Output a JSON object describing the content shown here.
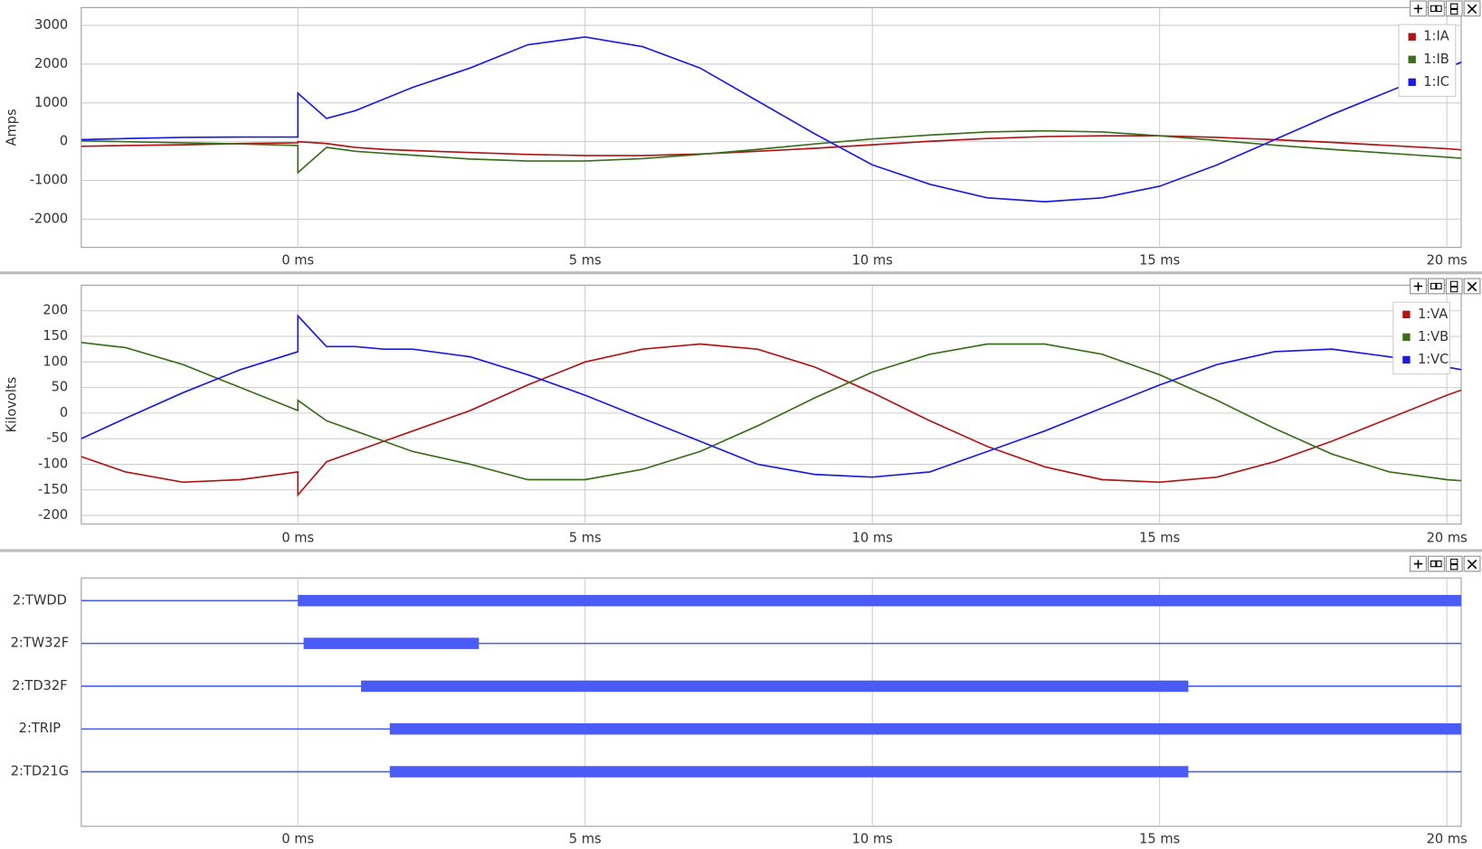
{
  "chart_data": [
    {
      "type": "line",
      "ylabel": "Amps",
      "x": [
        -3.77,
        -3,
        -2,
        -1,
        0,
        0,
        0.5,
        1,
        1.5,
        2,
        3,
        4,
        5,
        6,
        7,
        8,
        9,
        10,
        11,
        12,
        13,
        14,
        15,
        16,
        17,
        18,
        19,
        20,
        20.25
      ],
      "xlim": [
        -3.77,
        20.25
      ],
      "xticks": [
        {
          "value": 0,
          "label": "0 ms"
        },
        {
          "value": 5,
          "label": "5 ms"
        },
        {
          "value": 10,
          "label": "10 ms"
        },
        {
          "value": 15,
          "label": "15 ms"
        },
        {
          "value": 20,
          "label": "20 ms"
        }
      ],
      "ylim": [
        -2730,
        3460
      ],
      "yticks": [
        -2000,
        -1000,
        0,
        1000,
        2000,
        3000
      ],
      "grid": true,
      "legend": "top-right",
      "series": [
        {
          "name": "1:IA",
          "color": "#b01414",
          "values": [
            -120,
            -100,
            -80,
            -50,
            -30,
            0,
            -50,
            -150,
            -200,
            -230,
            -280,
            -330,
            -360,
            -360,
            -320,
            -250,
            -170,
            -80,
            10,
            80,
            130,
            150,
            150,
            110,
            50,
            -20,
            -100,
            -180,
            -210
          ]
        },
        {
          "name": "1:IB",
          "color": "#3a6e1a",
          "values": [
            20,
            0,
            -30,
            -60,
            -100,
            -800,
            -150,
            -250,
            -300,
            -350,
            -450,
            -500,
            -500,
            -440,
            -330,
            -200,
            -60,
            70,
            170,
            250,
            280,
            250,
            150,
            30,
            -90,
            -200,
            -300,
            -400,
            -430
          ]
        },
        {
          "name": "1:IC",
          "color": "#1a1ae6",
          "values": [
            50,
            80,
            110,
            120,
            120,
            1250,
            600,
            800,
            1100,
            1400,
            1900,
            2500,
            2700,
            2450,
            1900,
            1050,
            200,
            -600,
            -1100,
            -1450,
            -1550,
            -1450,
            -1150,
            -600,
            50,
            700,
            1300,
            1900,
            2050
          ]
        }
      ]
    },
    {
      "type": "line",
      "ylabel": "Kilovolts",
      "x": [
        -3.77,
        -3,
        -2,
        -1,
        0,
        0,
        0.5,
        1,
        1.5,
        2,
        3,
        4,
        5,
        6,
        7,
        8,
        9,
        10,
        11,
        12,
        13,
        14,
        15,
        16,
        17,
        18,
        19,
        20,
        20.25
      ],
      "xlim": [
        -3.77,
        20.25
      ],
      "xticks": [
        {
          "value": 0,
          "label": "0 ms"
        },
        {
          "value": 5,
          "label": "5 ms"
        },
        {
          "value": 10,
          "label": "10 ms"
        },
        {
          "value": 15,
          "label": "15 ms"
        },
        {
          "value": 20,
          "label": "20 ms"
        }
      ],
      "ylim": [
        -217,
        250
      ],
      "yticks": [
        -200,
        -150,
        -100,
        -50,
        0,
        50,
        100,
        150,
        200
      ],
      "grid": true,
      "legend": "top-right",
      "series": [
        {
          "name": "1:VA",
          "color": "#b01414",
          "values": [
            -85,
            -115,
            -135,
            -130,
            -115,
            -160,
            -95,
            -75,
            -55,
            -35,
            5,
            55,
            100,
            125,
            135,
            125,
            90,
            40,
            -15,
            -65,
            -105,
            -130,
            -135,
            -125,
            -95,
            -55,
            -10,
            35,
            45
          ]
        },
        {
          "name": "1:VB",
          "color": "#3a6e1a",
          "values": [
            138,
            128,
            95,
            50,
            5,
            25,
            -15,
            -35,
            -55,
            -75,
            -100,
            -130,
            -130,
            -110,
            -75,
            -25,
            30,
            80,
            115,
            135,
            135,
            115,
            75,
            25,
            -30,
            -80,
            -115,
            -130,
            -132
          ]
        },
        {
          "name": "1:VC",
          "color": "#1a1ae6",
          "values": [
            -50,
            -10,
            40,
            85,
            120,
            190,
            130,
            130,
            125,
            125,
            110,
            75,
            35,
            -10,
            -55,
            -100,
            -120,
            -125,
            -115,
            -75,
            -35,
            10,
            55,
            95,
            120,
            125,
            110,
            90,
            85
          ]
        }
      ]
    },
    {
      "type": "timeline",
      "color": "#4a5cf5",
      "grid": true,
      "xlim": [
        -3.77,
        20.25
      ],
      "xticks": [
        {
          "value": 0,
          "label": "0 ms"
        },
        {
          "value": 5,
          "label": "5 ms"
        },
        {
          "value": 10,
          "label": "10 ms"
        },
        {
          "value": 15,
          "label": "15 ms"
        },
        {
          "value": 20,
          "label": "20 ms"
        }
      ],
      "series": [
        {
          "name": "2:TWDD",
          "start": 0,
          "end": 20.25
        },
        {
          "name": "2:TW32F",
          "start": 0.1,
          "end": 3.15
        },
        {
          "name": "2:TD32F",
          "start": 1.1,
          "end": 15.5
        },
        {
          "name": "2:TRIP",
          "start": 1.6,
          "end": 20.25
        },
        {
          "name": "2:TD21G",
          "start": 1.6,
          "end": 15.5
        }
      ]
    }
  ]
}
